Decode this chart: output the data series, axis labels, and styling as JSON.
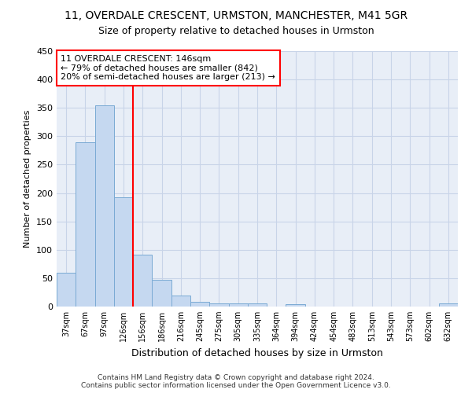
{
  "title1": "11, OVERDALE CRESCENT, URMSTON, MANCHESTER, M41 5GR",
  "title2": "Size of property relative to detached houses in Urmston",
  "xlabel": "Distribution of detached houses by size in Urmston",
  "ylabel": "Number of detached properties",
  "categories": [
    "37sqm",
    "67sqm",
    "97sqm",
    "126sqm",
    "156sqm",
    "186sqm",
    "216sqm",
    "245sqm",
    "275sqm",
    "305sqm",
    "335sqm",
    "364sqm",
    "394sqm",
    "424sqm",
    "454sqm",
    "483sqm",
    "513sqm",
    "543sqm",
    "573sqm",
    "602sqm",
    "632sqm"
  ],
  "values": [
    59,
    290,
    355,
    193,
    91,
    47,
    20,
    9,
    5,
    6,
    5,
    0,
    4,
    0,
    0,
    0,
    0,
    0,
    0,
    0,
    5
  ],
  "bar_color": "#c5d8f0",
  "bar_edge_color": "#7aaad4",
  "property_line_x": 3.5,
  "annotation_line1": "11 OVERDALE CRESCENT: 146sqm",
  "annotation_line2": "← 79% of detached houses are smaller (842)",
  "annotation_line3": "20% of semi-detached houses are larger (213) →",
  "annotation_box_color": "white",
  "annotation_box_edge": "red",
  "vline_color": "red",
  "ylim": [
    0,
    450
  ],
  "yticks": [
    0,
    50,
    100,
    150,
    200,
    250,
    300,
    350,
    400,
    450
  ],
  "grid_color": "#c8d4e8",
  "bg_color": "#e8eef7",
  "footer": "Contains HM Land Registry data © Crown copyright and database right 2024.\nContains public sector information licensed under the Open Government Licence v3.0.",
  "title1_fontsize": 10,
  "title2_fontsize": 9,
  "annotation_fontsize": 8
}
